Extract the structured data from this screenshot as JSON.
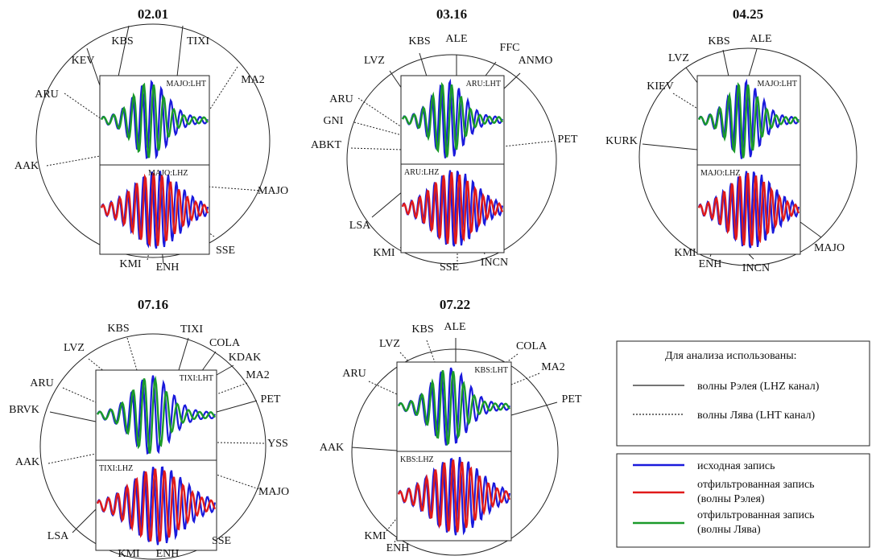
{
  "colors": {
    "original": "#1a1adc",
    "rayleigh": "#e01a1a",
    "love": "#1a9a2a",
    "line": "#222222"
  },
  "panels": [
    {
      "title": "02.01",
      "inset_top": "MAJO:LHT",
      "inset_bottom": "MAJO:LHZ",
      "stations": [
        {
          "name": "KBS",
          "type": "solid"
        },
        {
          "name": "TIXI",
          "type": "solid"
        },
        {
          "name": "KEV",
          "type": "solid"
        },
        {
          "name": "MA2",
          "type": "dotted"
        },
        {
          "name": "ARU",
          "type": "dotted"
        },
        {
          "name": "AAK",
          "type": "dotted"
        },
        {
          "name": "MAJO",
          "type": "dotted"
        },
        {
          "name": "SSE",
          "type": "dotted"
        },
        {
          "name": "KMI",
          "type": "dotted"
        },
        {
          "name": "ENH",
          "type": "solid"
        }
      ]
    },
    {
      "title": "03.16",
      "inset_top": "ARU:LHT",
      "inset_bottom": "ARU:LHZ",
      "stations": [
        {
          "name": "KBS",
          "type": "solid"
        },
        {
          "name": "ALE",
          "type": "solid"
        },
        {
          "name": "FFC",
          "type": "solid"
        },
        {
          "name": "ANMO",
          "type": "solid"
        },
        {
          "name": "LVZ",
          "type": "solid"
        },
        {
          "name": "ARU",
          "type": "dotted"
        },
        {
          "name": "GNI",
          "type": "dotted"
        },
        {
          "name": "ABKT",
          "type": "dotted"
        },
        {
          "name": "PET",
          "type": "dotted"
        },
        {
          "name": "LSA",
          "type": "solid"
        },
        {
          "name": "KMI",
          "type": "solid"
        },
        {
          "name": "SSE",
          "type": "dotted"
        },
        {
          "name": "INCN",
          "type": "solid"
        }
      ]
    },
    {
      "title": "04.25",
      "inset_top": "MAJO:LHT",
      "inset_bottom": "MAJO:LHZ",
      "stations": [
        {
          "name": "KBS",
          "type": "solid"
        },
        {
          "name": "ALE",
          "type": "solid"
        },
        {
          "name": "LVZ",
          "type": "solid"
        },
        {
          "name": "KIEV",
          "type": "dotted"
        },
        {
          "name": "KURK",
          "type": "solid"
        },
        {
          "name": "KMI",
          "type": "dotted"
        },
        {
          "name": "ENH",
          "type": "solid"
        },
        {
          "name": "INCN",
          "type": "solid"
        },
        {
          "name": "MAJO",
          "type": "solid"
        }
      ]
    },
    {
      "title": "07.16",
      "inset_top": "TIXI:LHT",
      "inset_bottom": "TIXI:LHZ",
      "stations": [
        {
          "name": "KBS",
          "type": "dotted"
        },
        {
          "name": "TIXI",
          "type": "solid"
        },
        {
          "name": "COLA",
          "type": "solid"
        },
        {
          "name": "KDAK",
          "type": "solid"
        },
        {
          "name": "MA2",
          "type": "dotted"
        },
        {
          "name": "PET",
          "type": "solid"
        },
        {
          "name": "LVZ",
          "type": "dotted"
        },
        {
          "name": "ARU",
          "type": "dotted"
        },
        {
          "name": "BRVK",
          "type": "solid"
        },
        {
          "name": "YSS",
          "type": "dotted"
        },
        {
          "name": "AAK",
          "type": "dotted"
        },
        {
          "name": "MAJO",
          "type": "dotted"
        },
        {
          "name": "LSA",
          "type": "solid"
        },
        {
          "name": "SSE",
          "type": "dotted"
        },
        {
          "name": "KMI",
          "type": "dotted"
        },
        {
          "name": "ENH",
          "type": "solid"
        }
      ]
    },
    {
      "title": "07.22",
      "inset_top": "KBS:LHT",
      "inset_bottom": "KBS:LHZ",
      "stations": [
        {
          "name": "KBS",
          "type": "dotted"
        },
        {
          "name": "ALE",
          "type": "solid"
        },
        {
          "name": "LVZ",
          "type": "dotted"
        },
        {
          "name": "COLA",
          "type": "dotted"
        },
        {
          "name": "MA2",
          "type": "dotted"
        },
        {
          "name": "ARU",
          "type": "dotted"
        },
        {
          "name": "PET",
          "type": "solid"
        },
        {
          "name": "AAK",
          "type": "solid"
        },
        {
          "name": "KMI",
          "type": "dotted"
        },
        {
          "name": "ENH",
          "type": "dotted"
        }
      ]
    }
  ],
  "legend": {
    "box1_title": "Для анализа использованы:",
    "rayleigh_waves": "волны Рэлея (LHZ канал)",
    "love_waves": "волны Лява (LHT канал)",
    "original_record": "исходная запись",
    "filtered_rayleigh_1": "отфильтрованная запись",
    "filtered_rayleigh_2": "(волны Рэлея)",
    "filtered_love_1": "отфильтрованная запись",
    "filtered_love_2": "(волны Лява)"
  }
}
